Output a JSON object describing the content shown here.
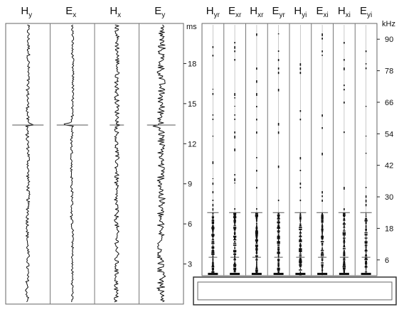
{
  "chart_data": [
    {
      "type": "line",
      "title": "",
      "orientation": "vertical",
      "channels": [
        {
          "main": "H",
          "sub": "y"
        },
        {
          "main": "E",
          "sub": "x"
        },
        {
          "main": "H",
          "sub": "x"
        },
        {
          "main": "E",
          "sub": "y"
        }
      ],
      "axis": {
        "unit": "ms",
        "range": [
          0,
          21
        ],
        "ticks": [
          "3",
          "6",
          "9",
          "12",
          "15",
          "18"
        ],
        "tick_values": [
          3,
          6,
          9,
          12,
          15,
          18
        ]
      },
      "event_time": 13.4,
      "grid": false
    },
    {
      "type": "bar",
      "title": "",
      "orientation": "vertical",
      "channels": [
        {
          "main": "H",
          "sub": "yr"
        },
        {
          "main": "E",
          "sub": "xr"
        },
        {
          "main": "H",
          "sub": "xr"
        },
        {
          "main": "E",
          "sub": "yr"
        },
        {
          "main": "H",
          "sub": "yi"
        },
        {
          "main": "E",
          "sub": "xi"
        },
        {
          "main": "H",
          "sub": "xi"
        },
        {
          "main": "E",
          "sub": "yi"
        }
      ],
      "axis": {
        "unit": "kHz",
        "range": [
          0,
          96
        ],
        "ticks": [
          "6",
          "18",
          "30",
          "42",
          "54",
          "66",
          "78",
          "90"
        ],
        "tick_values": [
          6,
          18,
          30,
          42,
          54,
          66,
          78,
          90
        ]
      },
      "marker_frequencies": [
        24,
        7
      ],
      "grid": false
    }
  ]
}
